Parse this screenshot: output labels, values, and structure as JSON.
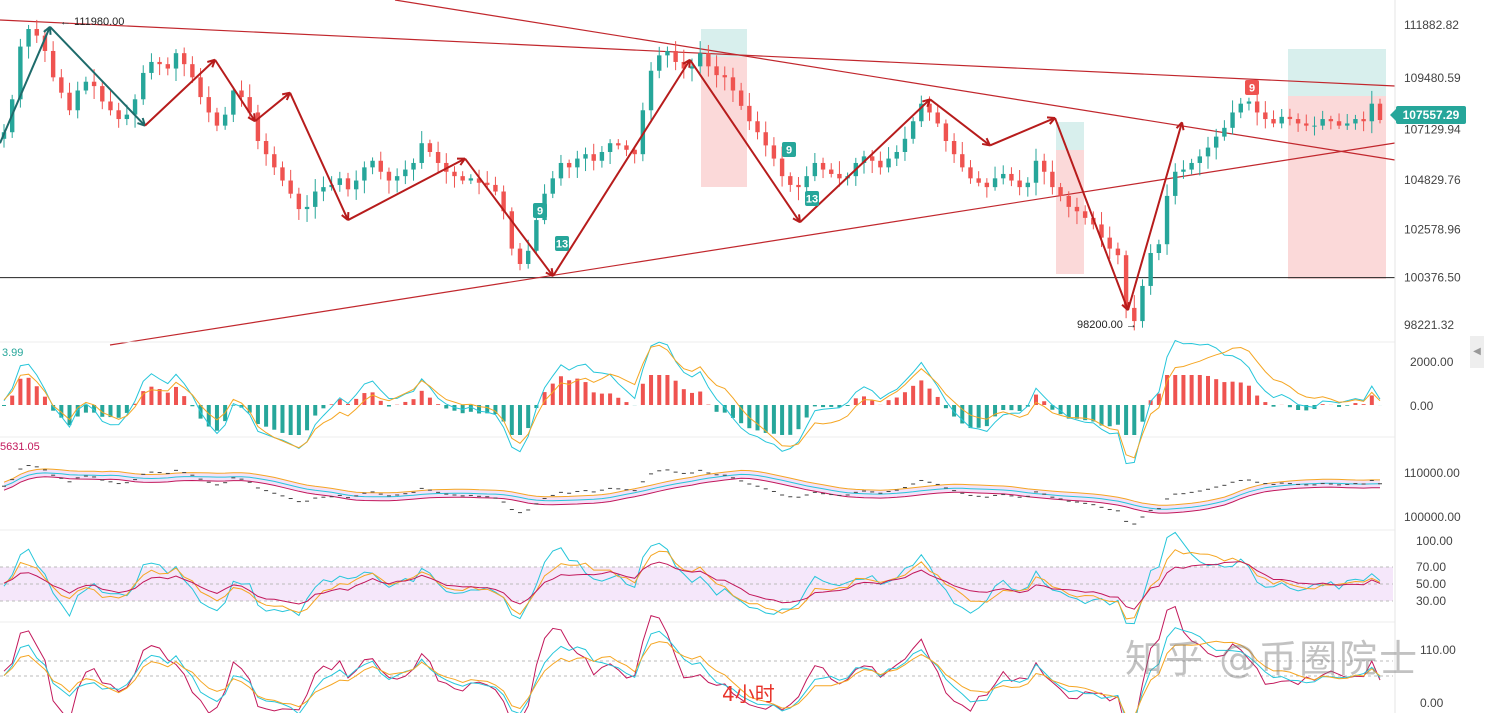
{
  "chart_data": {
    "type": "candlestick",
    "timeframe_label": "4小时",
    "watermark": "知乎 @币圈院士",
    "price_axis": {
      "ticks": [
        111882.82,
        109480.59,
        107129.94,
        104829.76,
        102578.96,
        100376.5,
        98221.32
      ],
      "tick_labels": [
        "111882.82",
        "109480.59",
        "107129.94",
        "104829.76",
        "102578.96",
        "100376.50",
        "98221.32"
      ],
      "ylim": [
        97500,
        112900
      ]
    },
    "current_price": "107557.29",
    "annotations": {
      "high": "111980.00",
      "low": "98200.00",
      "td_counts": [
        "9",
        "13",
        "9",
        "13",
        "9"
      ]
    },
    "horizontal_line": 100376.5,
    "zigzag_prices": [
      106500,
      111800,
      107300,
      110300,
      107500,
      108800,
      103000,
      105800,
      100450,
      110300,
      102900,
      108500,
      106400,
      107650,
      98900,
      107450
    ],
    "candles_close_path": [
      107000,
      108500,
      110900,
      111700,
      111400,
      110700,
      109500,
      108800,
      108000,
      108900,
      109300,
      109100,
      108400,
      108000,
      107600,
      107800,
      108500,
      109700,
      110200,
      110100,
      109900,
      110600,
      110100,
      109500,
      108600,
      107900,
      107300,
      107800,
      108900,
      108600,
      107900,
      106600,
      106000,
      105400,
      104800,
      104200,
      103500,
      103600,
      104300,
      104500,
      104600,
      104900,
      104400,
      104800,
      105400,
      105700,
      105200,
      104800,
      105000,
      105300,
      105600,
      106500,
      106100,
      105600,
      105200,
      105000,
      104800,
      104900,
      104700,
      104600,
      104300,
      103400,
      101700,
      101000,
      101600,
      103000,
      104200,
      104900,
      105600,
      105400,
      105800,
      106000,
      105700,
      106100,
      106500,
      106400,
      106200,
      106000,
      108000,
      109800,
      110500,
      110700,
      110200,
      109900,
      110000,
      110600,
      110000,
      109600,
      109500,
      108900,
      108200,
      107500,
      107000,
      106400,
      105800,
      105000,
      104600,
      104500,
      105000,
      105600,
      105300,
      105100,
      104900,
      105000,
      105600,
      105900,
      105700,
      105400,
      105800,
      106100,
      106700,
      107500,
      108300,
      107900,
      107400,
      106600,
      106000,
      105400,
      104900,
      104700,
      104500,
      104900,
      105100,
      104800,
      104500,
      104700,
      105700,
      105200,
      104500,
      104100,
      103600,
      103400,
      103100,
      102800,
      102200,
      101700,
      101400,
      99000,
      98400,
      100000,
      101500,
      101900,
      104100,
      105200,
      105300,
      105600,
      105900,
      106300,
      106800,
      107200,
      107900,
      108300,
      108400,
      107900,
      107600,
      107400,
      107700,
      107600,
      107400,
      107300,
      107300,
      107600,
      107500,
      107300,
      107400,
      107600,
      107500,
      108300,
      107557
    ]
  },
  "indicators": {
    "macd": {
      "label": "3.99",
      "ticks": [
        "2000.00",
        "0.00"
      ]
    },
    "ma": {
      "label": "5631.05",
      "ticks": [
        "110000.00",
        "100000.00"
      ]
    },
    "rsi": {
      "ticks": [
        "100.00",
        "70.00",
        "50.00",
        "30.00"
      ]
    },
    "kdj": {
      "ticks": [
        "110.00",
        "0.00"
      ]
    }
  },
  "colors": {
    "up": "#26a69a",
    "down": "#ef5350",
    "trendline": "#c1272d",
    "zigzag": "#b71c1c",
    "zigzag_early": "#1e6b6b",
    "box_green": "rgba(38,166,154,0.18)",
    "box_red": "rgba(239,83,80,0.22)",
    "cloud": "rgba(210,140,230,0.25)"
  }
}
